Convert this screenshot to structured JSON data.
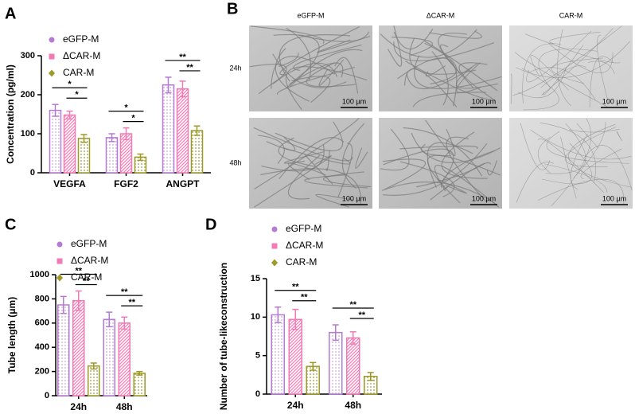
{
  "chart_data": [
    {
      "type": "bar",
      "label": "A",
      "y_label": "Concentration (pg/ml)",
      "categories": [
        "VEGFA",
        "FGF2",
        "ANGPT"
      ],
      "series": [
        {
          "name": "eGFP-M",
          "color": "#b57ad3",
          "values": [
            160,
            90,
            225
          ],
          "errors": [
            15,
            10,
            20
          ]
        },
        {
          "name": "ΔCAR-M",
          "color": "#f27bb5",
          "values": [
            148,
            100,
            215
          ],
          "errors": [
            10,
            15,
            20
          ]
        },
        {
          "name": "CAR-M",
          "color": "#9e9a2a",
          "values": [
            88,
            40,
            108
          ],
          "errors": [
            10,
            8,
            12
          ]
        }
      ],
      "ylim": [
        0,
        300
      ],
      "yticks": [
        0,
        100,
        200,
        300
      ],
      "significance": [
        {
          "category": 0,
          "between": [
            0,
            2
          ],
          "label": "*"
        },
        {
          "category": 0,
          "between": [
            1,
            2
          ],
          "label": "*"
        },
        {
          "category": 1,
          "between": [
            0,
            2
          ],
          "label": "*"
        },
        {
          "category": 1,
          "between": [
            1,
            2
          ],
          "label": "*"
        },
        {
          "category": 2,
          "between": [
            0,
            2
          ],
          "label": "**"
        },
        {
          "category": 2,
          "between": [
            1,
            2
          ],
          "label": "**"
        }
      ]
    },
    {
      "type": "bar",
      "label": "C",
      "y_label": "Tube length (μm)",
      "categories": [
        "24h",
        "48h"
      ],
      "series": [
        {
          "name": "eGFP-M",
          "color": "#b57ad3",
          "values": [
            750,
            630
          ],
          "errors": [
            70,
            60
          ]
        },
        {
          "name": "ΔCAR-M",
          "color": "#f27bb5",
          "values": [
            785,
            600
          ],
          "errors": [
            80,
            50
          ]
        },
        {
          "name": "CAR-M",
          "color": "#9e9a2a",
          "values": [
            245,
            185
          ],
          "errors": [
            25,
            15
          ]
        }
      ],
      "ylim": [
        0,
        1000
      ],
      "yticks": [
        0,
        200,
        400,
        600,
        800,
        1000
      ],
      "significance": [
        {
          "category": 0,
          "between": [
            0,
            2
          ],
          "label": "**"
        },
        {
          "category": 0,
          "between": [
            1,
            2
          ],
          "label": "**"
        },
        {
          "category": 1,
          "between": [
            0,
            2
          ],
          "label": "**"
        },
        {
          "category": 1,
          "between": [
            1,
            2
          ],
          "label": "**"
        }
      ]
    },
    {
      "type": "bar",
      "label": "D",
      "y_label": "Number of tube-likeconstruction",
      "categories": [
        "24h",
        "48h"
      ],
      "series": [
        {
          "name": "eGFP-M",
          "color": "#b57ad3",
          "values": [
            10.3,
            8.0
          ],
          "errors": [
            1.0,
            1.0
          ]
        },
        {
          "name": "ΔCAR-M",
          "color": "#f27bb5",
          "values": [
            9.7,
            7.3
          ],
          "errors": [
            1.3,
            0.8
          ]
        },
        {
          "name": "CAR-M",
          "color": "#9e9a2a",
          "values": [
            3.6,
            2.3
          ],
          "errors": [
            0.5,
            0.5
          ]
        }
      ],
      "ylim": [
        0,
        15
      ],
      "yticks": [
        0,
        5,
        10,
        15
      ],
      "significance": [
        {
          "category": 0,
          "between": [
            0,
            2
          ],
          "label": "**"
        },
        {
          "category": 0,
          "between": [
            1,
            2
          ],
          "label": "**"
        },
        {
          "category": 1,
          "between": [
            0,
            2
          ],
          "label": "**"
        },
        {
          "category": 1,
          "between": [
            1,
            2
          ],
          "label": "**"
        }
      ]
    }
  ],
  "image_grid": {
    "label": "B",
    "columns": [
      "eGFP-M",
      "ΔCAR-M",
      "CAR-M"
    ],
    "rows": [
      "24h",
      "48h"
    ],
    "scale_bar": "100 µm"
  }
}
